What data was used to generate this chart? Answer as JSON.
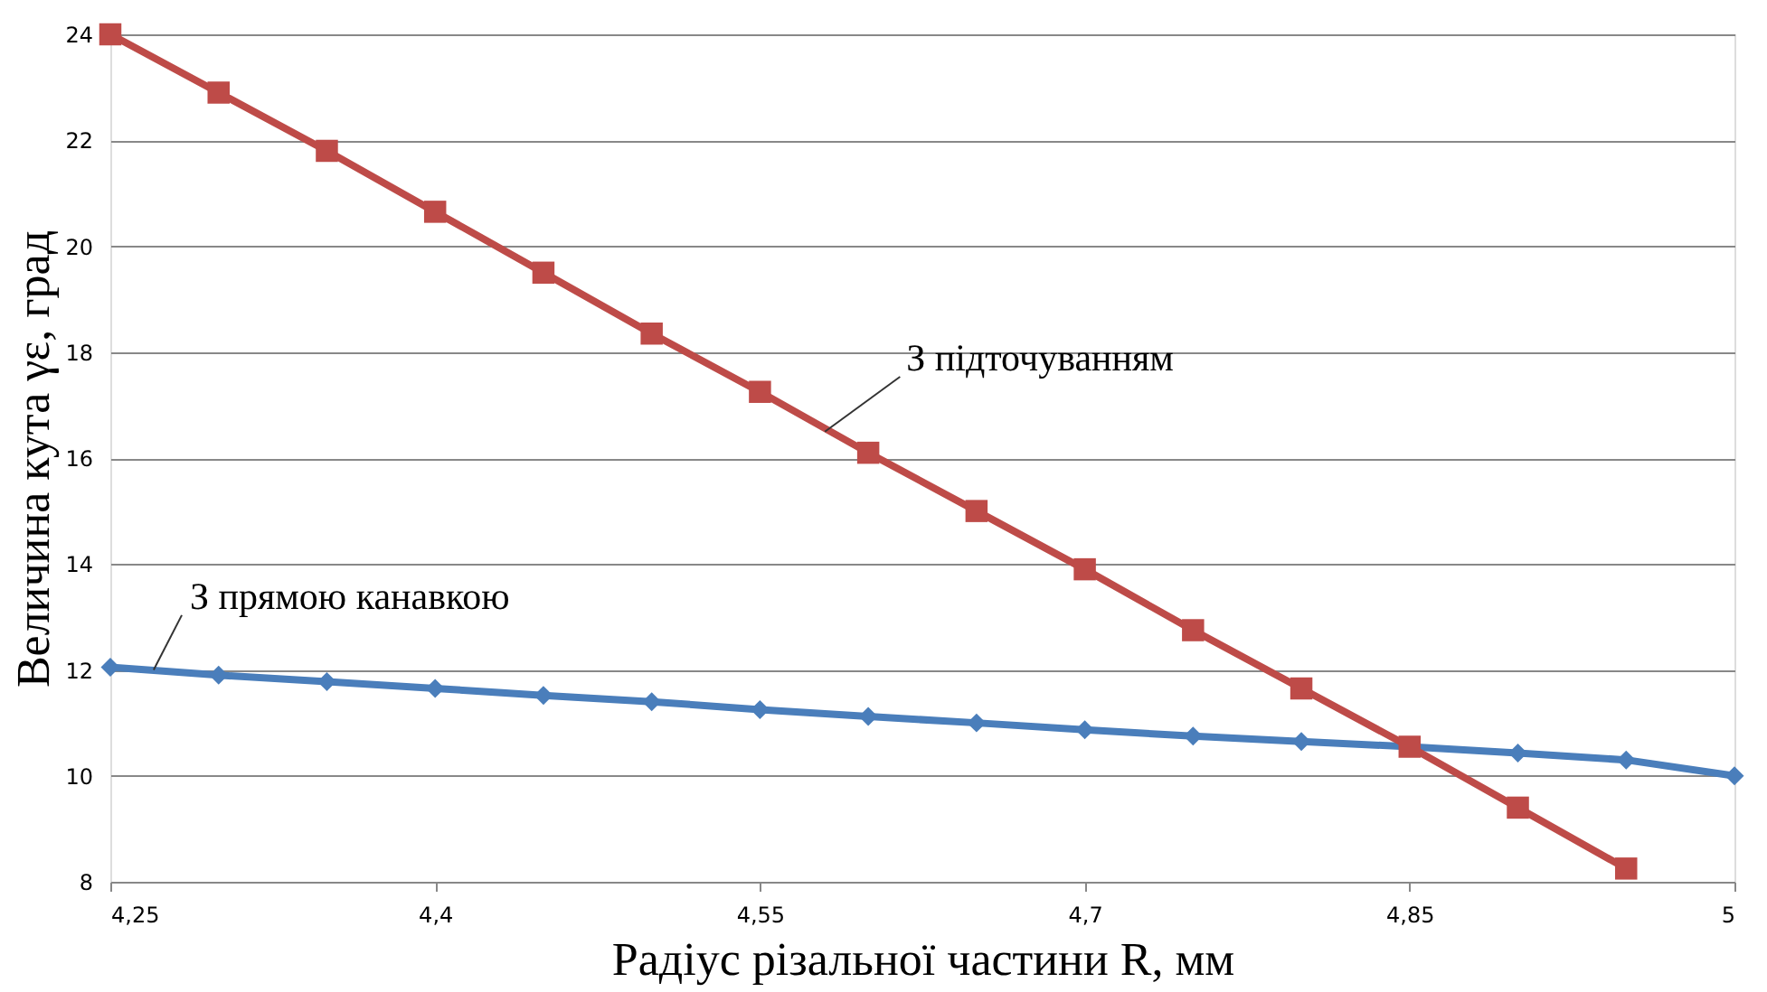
{
  "chart_data": {
    "type": "line",
    "xlabel": "Радіус різальної частини R, мм",
    "ylabel": "Величина кута γε, град",
    "x": [
      4.25,
      4.3,
      4.35,
      4.4,
      4.45,
      4.5,
      4.55,
      4.6,
      4.65,
      4.7,
      4.75,
      4.8,
      4.85,
      4.9,
      4.95,
      5.0
    ],
    "series": [
      {
        "color": "#4a7ebb",
        "marker": "diamond",
        "values": [
          12.05,
          11.9,
          11.78,
          11.65,
          11.52,
          11.4,
          11.25,
          11.12,
          11.0,
          10.87,
          10.75,
          10.65,
          10.55,
          10.43,
          10.3,
          10.0
        ]
      },
      {
        "color": "#be4b48",
        "marker": "square",
        "values": [
          24.0,
          22.9,
          21.8,
          20.65,
          19.5,
          18.35,
          17.25,
          16.1,
          15.0,
          13.9,
          12.75,
          11.65,
          10.55,
          9.4,
          8.25,
          null
        ]
      }
    ],
    "annotations": [
      {
        "text": "З прямою канавкою",
        "x": 4.27,
        "y": 12.0
      },
      {
        "text": "З підточуванням",
        "x": 4.58,
        "y": 16.5
      }
    ],
    "xlim": [
      4.25,
      5.0
    ],
    "xticks": [
      {
        "value": 4.25,
        "label": "4,25"
      },
      {
        "value": 4.4,
        "label": "4,4"
      },
      {
        "value": 4.55,
        "label": "4,55"
      },
      {
        "value": 4.7,
        "label": "4,7"
      },
      {
        "value": 4.85,
        "label": "4,85"
      },
      5
    ],
    "ylim": [
      8,
      24
    ],
    "yticks": [
      8,
      10,
      12,
      14,
      16,
      18,
      20,
      22,
      24
    ],
    "grid": "y"
  }
}
